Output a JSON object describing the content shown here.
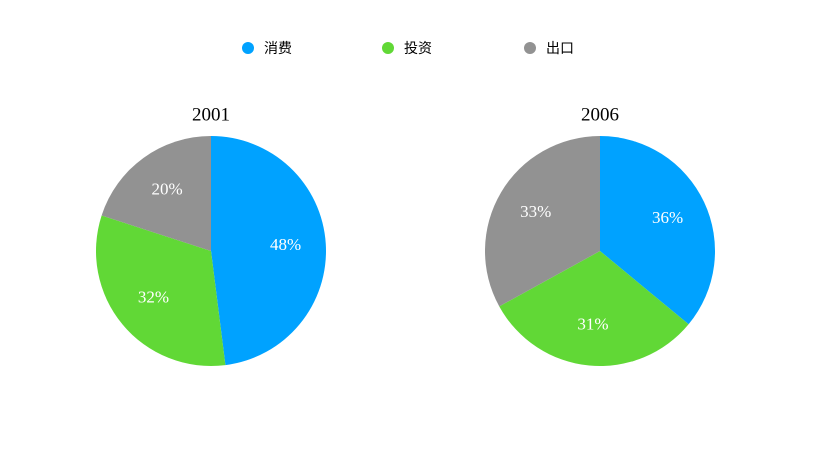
{
  "chart_data": [
    {
      "type": "pie",
      "title": "2001",
      "categories": [
        "消费",
        "投资",
        "出口"
      ],
      "colors": [
        "#00a2ff",
        "#61d836",
        "#929292"
      ],
      "values": [
        48,
        32,
        20
      ],
      "value_labels": [
        "48%",
        "32%",
        "20%"
      ]
    },
    {
      "type": "pie",
      "title": "2006",
      "values": [
        36,
        31,
        33
      ],
      "value_labels": [
        "36%",
        "31%",
        "33%"
      ]
    }
  ]
}
